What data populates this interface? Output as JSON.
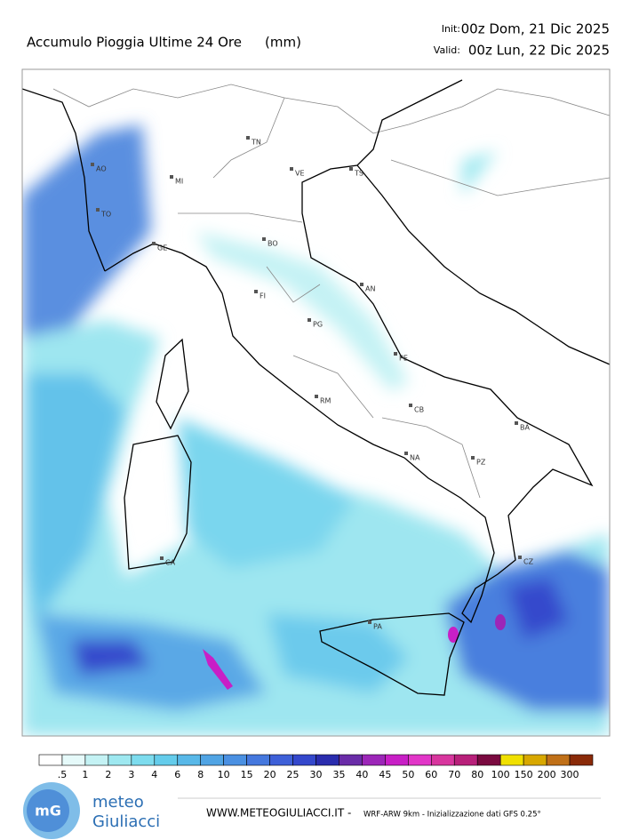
{
  "header": {
    "title": "Accumulo Pioggia Ultime 24 Ore",
    "units": "(mm)",
    "init_label": "Init:",
    "init": "00z Dom, 21 Dic 2025",
    "valid_label": "Valid:",
    "valid": "00z Lun, 22 Dic 2025"
  },
  "map": {
    "cities": [
      {
        "label": "AO"
      },
      {
        "label": "TO"
      },
      {
        "label": "MI"
      },
      {
        "label": "GE"
      },
      {
        "label": "TN"
      },
      {
        "label": "VE"
      },
      {
        "label": "TS"
      },
      {
        "label": "BO"
      },
      {
        "label": "AN"
      },
      {
        "label": "FI"
      },
      {
        "label": "PG"
      },
      {
        "label": "PE"
      },
      {
        "label": "RM"
      },
      {
        "label": "CB"
      },
      {
        "label": "BA"
      },
      {
        "label": "NA"
      },
      {
        "label": "PZ"
      },
      {
        "label": "CA"
      },
      {
        "label": "PA"
      },
      {
        "label": "CZ"
      }
    ]
  },
  "colorbar": {
    "labels": [
      ".5",
      "1",
      "2",
      "3",
      "4",
      "6",
      "8",
      "10",
      "15",
      "20",
      "25",
      "30",
      "35",
      "40",
      "45",
      "50",
      "60",
      "70",
      "80",
      "100",
      "150",
      "200",
      "300"
    ],
    "colors": [
      "#ffffff",
      "#e6fafa",
      "#c4f2f4",
      "#9ee8f0",
      "#7ddcee",
      "#64cceb",
      "#58b8e8",
      "#50a4e4",
      "#4a90e2",
      "#4578de",
      "#3e60d8",
      "#3448cc",
      "#2a2cae",
      "#6a2ca8",
      "#9c26b8",
      "#c81fc6",
      "#e236c8",
      "#d8369e",
      "#b8207a",
      "#7a0a40",
      "#f0e000",
      "#d8a800",
      "#c07018",
      "#8a2a08"
    ]
  },
  "footer": {
    "logo_mark": "mG",
    "brand_top": "meteo",
    "brand_bottom": "Giuliacci",
    "site": "WWW.METEOGIULIACCI.IT -",
    "model": "WRF-ARW 9km - Inizializzazione dati GFS 0.25°"
  }
}
